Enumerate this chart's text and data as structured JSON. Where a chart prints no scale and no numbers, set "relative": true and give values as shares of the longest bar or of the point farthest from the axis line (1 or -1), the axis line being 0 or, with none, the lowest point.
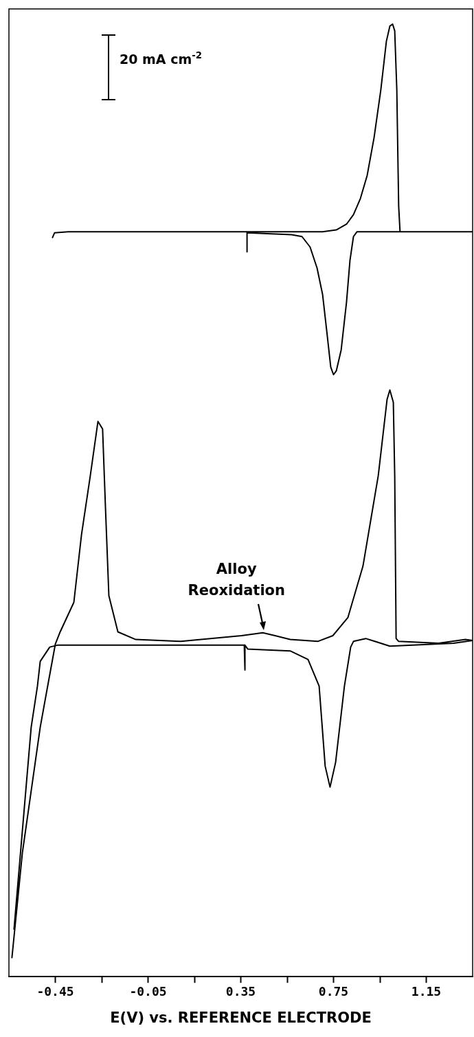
{
  "chart_data": {
    "type": "line",
    "relative": true,
    "marker": "none",
    "xlabel": "E(V) vs. REFERENCE ELECTRODE",
    "xlim": [
      -0.65,
      1.35
    ],
    "xticks": [
      -0.45,
      {
        "value": -0.25,
        "label": null
      },
      -0.05,
      {
        "value": 0.15,
        "label": null
      },
      0.35,
      {
        "value": 0.55,
        "label": null
      },
      0.75,
      {
        "value": 0.95,
        "label": null
      },
      1.15
    ],
    "annotations": [
      "20 mA cm$^{-2}$",
      {
        "text": "Alloy Reoxidation",
        "x": 0.45,
        "y": 0.36
      }
    ],
    "series": [
      {
        "color": "#000000",
        "x": [
          -0.462,
          -0.453,
          -0.394,
          0.377,
          0.703,
          0.762,
          0.806,
          0.836,
          0.866,
          0.895,
          0.925,
          0.954,
          0.978,
          0.993,
          1.005,
          1.014,
          1.023,
          1.031,
          1.037,
          1.35,
          0.851,
          0.836,
          0.821,
          0.806,
          0.783,
          0.762,
          0.75,
          0.738,
          0.723,
          0.703,
          0.679,
          0.649,
          0.614,
          0.569,
          0.377,
          0.377
        ],
        "values": [
          0.776,
          0.781,
          0.782,
          0.782,
          0.782,
          0.784,
          0.79,
          0.8,
          0.817,
          0.841,
          0.881,
          0.931,
          0.982,
          0.998,
          1,
          0.993,
          0.931,
          0.809,
          0.782,
          0.782,
          0.782,
          0.777,
          0.752,
          0.708,
          0.658,
          0.636,
          0.632,
          0.64,
          0.673,
          0.716,
          0.744,
          0.766,
          0.777,
          0.779,
          0.781,
          0.761
        ]
      },
      {
        "color": "#000000",
        "x": [
          -0.637,
          -0.592,
          -0.515,
          -0.483,
          -0.45,
          -0.429,
          -0.37,
          -0.337,
          -0.299,
          -0.266,
          -0.246,
          -0.234,
          -0.219,
          -0.18,
          -0.103,
          0.092,
          0.353,
          0.445,
          0.498,
          0.563,
          0.682,
          0.747,
          0.812,
          0.877,
          0.943,
          0.981,
          0.993,
          1.008,
          1.014,
          1.02,
          1.031,
          1.203,
          1.319,
          1.35,
          1.268,
          0.993,
          0.928,
          0.889,
          0.836,
          0.824,
          0.797,
          0.759,
          0.735,
          0.714,
          0.688,
          0.64,
          0.563,
          0.38,
          0.368,
          0.368,
          0.365,
          -0.441,
          -0.474,
          -0.515,
          -0.527,
          -0.554,
          -0.628
        ],
        "values": [
          0.02,
          0.13,
          0.262,
          0.305,
          0.349,
          0.362,
          0.393,
          0.464,
          0.526,
          0.583,
          0.575,
          0.495,
          0.4,
          0.362,
          0.354,
          0.352,
          0.358,
          0.361,
          0.358,
          0.354,
          0.352,
          0.358,
          0.377,
          0.431,
          0.526,
          0.606,
          0.616,
          0.603,
          0.526,
          0.355,
          0.352,
          0.35,
          0.354,
          0.353,
          0.35,
          0.347,
          0.352,
          0.355,
          0.352,
          0.346,
          0.305,
          0.225,
          0.199,
          0.221,
          0.305,
          0.333,
          0.342,
          0.344,
          0.348,
          0.322,
          0.348,
          0.348,
          0.346,
          0.331,
          0.305,
          0.262,
          0.05
        ]
      }
    ]
  }
}
